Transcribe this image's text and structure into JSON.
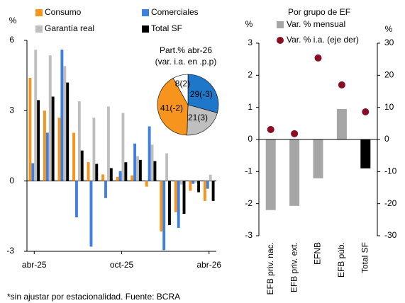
{
  "chart_data": [
    {
      "type": "bar",
      "y_label": "%",
      "categories": [
        "abr-25",
        null,
        null,
        null,
        null,
        null,
        "oct-25",
        null,
        null,
        null,
        null,
        null,
        "abr-26"
      ],
      "ylim": [
        -3,
        6
      ],
      "yticks": [
        -3,
        0,
        3,
        6
      ],
      "series": [
        {
          "name": "Consumo",
          "color": "#f7941d",
          "values": [
            4.4,
            3.0,
            2.7,
            2.06,
            0.8,
            0.28,
            0.18,
            0.24,
            -0.24,
            -2.15,
            -1.33,
            -0.42,
            -0.85
          ]
        },
        {
          "name": "Comerciales",
          "color": "#3f7fe0",
          "values": [
            0.76,
            2.06,
            5.6,
            -1.55,
            -2.8,
            -0.73,
            0.42,
            1.6,
            2.33,
            -2.95,
            -2.0,
            -0.12,
            -0.33
          ]
        },
        {
          "name": "Garantía real",
          "color": "#bfbfbf",
          "values": [
            5.6,
            5.36,
            4.9,
            3.4,
            2.7,
            3.18,
            2.9,
            1.06,
            1.55,
            1.18,
            -0.15,
            -0.06,
            0.27
          ]
        },
        {
          "name": "Total SF",
          "color": "#000000",
          "values": [
            3.45,
            3.6,
            4.2,
            1.3,
            0.73,
            0.55,
            0.8,
            0.9,
            0.85,
            -1.88,
            -1.4,
            -0.48,
            -0.85
          ]
        }
      ]
    },
    {
      "type": "pie",
      "title": "Part.% abr-26",
      "subtitle": "(var. i.a. en .p.p)",
      "values": [
        29,
        21,
        41,
        8
      ],
      "value_labels": [
        "29(-3)",
        "21(3)",
        "41(-2)",
        "8(2)"
      ],
      "colors": [
        "#1f77c9",
        "#bfbfbf",
        "#f7941d",
        "#ffffff"
      ]
    },
    {
      "type": "bar",
      "title": "Por grupo de EF",
      "y_label": "%",
      "y2_label": "%",
      "categories": [
        "EFB priv. nac.",
        "EFB priv. ext.",
        "EFNB",
        "EFB púb.",
        "Total SF"
      ],
      "ylim": [
        -3,
        3
      ],
      "yticks": [
        -3,
        -2,
        -1,
        0,
        1,
        2,
        3
      ],
      "y2lim": [
        -30,
        30
      ],
      "y2ticks": [
        -30,
        -20,
        -10,
        0,
        10,
        20,
        30
      ],
      "series": [
        {
          "name": "Var. % mensual",
          "type": "bar",
          "color": "#a6a6a6",
          "colors": [
            "#a6a6a6",
            "#a6a6a6",
            "#a6a6a6",
            "#a6a6a6",
            "#000000"
          ],
          "values": [
            -2.2,
            -2.07,
            -1.21,
            0.95,
            -0.9
          ]
        },
        {
          "name": "Var. % i.a. (eje der)",
          "type": "scatter",
          "axis": "y2",
          "color": "#8b0d24",
          "values": [
            3.1,
            1.8,
            25.4,
            17,
            8.6
          ]
        }
      ]
    }
  ],
  "footnote": "*sin ajustar por estacionalidad. Fuente: BCRA"
}
